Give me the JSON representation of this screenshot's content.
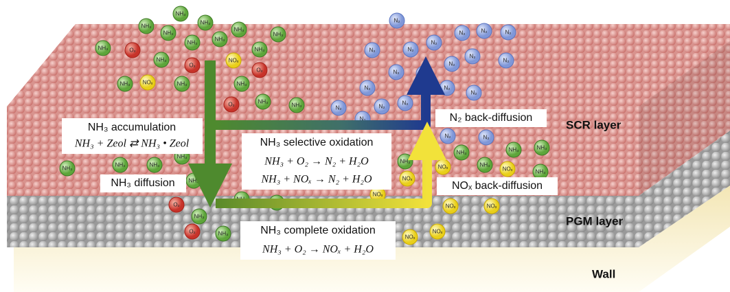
{
  "labels": {
    "scr_layer": "SCR layer",
    "pgm_layer": "PGM layer",
    "wall": "Wall"
  },
  "processes": {
    "accumulation": {
      "title": "NH₃ accumulation",
      "equation": "NH₃ + Zeol ⇄ NH₃ • Zeol"
    },
    "diffusion": {
      "title": "NH₃ diffusion"
    },
    "selective_oxidation": {
      "title": "NH₃ selective oxidation",
      "equations": [
        "NH₃ + O₂ → N₂ + H₂O",
        "NH₃ + NOₓ → N₂ + H₂O"
      ]
    },
    "complete_oxidation": {
      "title": "NH₃ complete oxidation",
      "equation": "NH₃ + O₂ → NOₓ + H₂O"
    },
    "n2_back_diffusion": {
      "title": "N₂ back-diffusion"
    },
    "nox_back_diffusion": {
      "title": "NOₓ back-diffusion"
    }
  },
  "molecules": [
    "NH₃",
    "NH₃",
    "NH₃",
    "NH₃",
    "NH₃",
    "NH₃",
    "NH₃",
    "NH₃",
    "NH₃",
    "NH₃",
    "NH₃",
    "NH₃",
    "NH₃",
    "NH₃",
    "NH₃",
    "NH₃",
    "NH₃",
    "NH₃",
    "NH₃",
    "NH₃",
    "NH₃",
    "NH₃",
    "NH₃",
    "NH₃",
    "NH₃",
    "NH₃",
    "NH₃",
    "NH₃",
    "NH₃",
    "NH₃",
    "NH₃",
    "O₂",
    "O₂",
    "O₂",
    "O₂",
    "O₂",
    "O₂",
    "NOₓ",
    "NOₓ",
    "NOₓ",
    "NOₓ",
    "NOₓ",
    "NOₓ",
    "NOₓ",
    "NOₓ",
    "NOₓ",
    "NOₓ",
    "N₂",
    "N₂",
    "N₂",
    "N₂",
    "N₂",
    "N₂",
    "N₂",
    "N₂",
    "N₂",
    "N₂",
    "N₂",
    "N₂",
    "N₂",
    "N₂",
    "N₂",
    "N₂",
    "N₂",
    "N₂",
    "N₂",
    "N₂",
    "N₂"
  ]
}
